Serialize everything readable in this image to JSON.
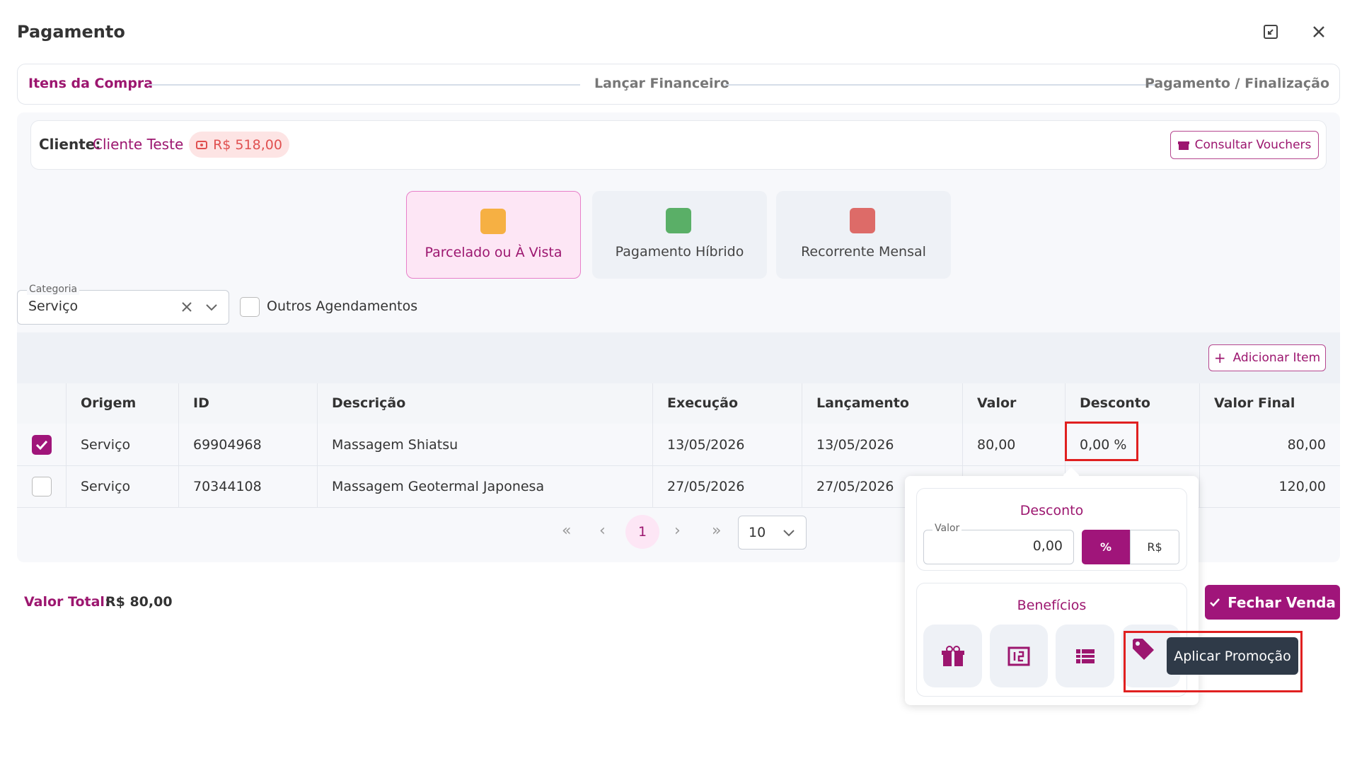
{
  "header": {
    "title": "Pagamento"
  },
  "steps": [
    "Itens da Compra",
    "Lançar Financeiro",
    "Pagamento / Finalização"
  ],
  "client": {
    "label": "Cliente:",
    "name": "Cliente Teste",
    "balance": "R$ 518,00",
    "vouchers_button": "Consultar Vouchers"
  },
  "payment_types": [
    "Parcelado ou À Vista",
    "Pagamento Híbrido",
    "Recorrente Mensal"
  ],
  "filters": {
    "category_label": "Categoria",
    "category_value": "Serviço",
    "others_label": "Outros Agendamentos"
  },
  "add_item": "Adicionar Item",
  "table": {
    "columns": [
      "Origem",
      "ID",
      "Descrição",
      "Execução",
      "Lançamento",
      "Valor",
      "Desconto",
      "Valor Final"
    ],
    "rows": [
      {
        "checked": true,
        "cells": [
          "Serviço",
          "69904968",
          "Massagem Shiatsu",
          "13/05/2026",
          "13/05/2026",
          "80,00",
          "0,00 %",
          "80,00"
        ]
      },
      {
        "checked": false,
        "cells": [
          "Serviço",
          "70344108",
          "Massagem Geotermal Japonesa",
          "27/05/2026",
          "27/05/2026",
          null,
          null,
          "120,00"
        ]
      }
    ]
  },
  "pagination": {
    "page": "1",
    "page_size": "10"
  },
  "total": {
    "label": "Valor Total:",
    "value": "R$ 80,00"
  },
  "close_sale": "Fechar Venda",
  "discount_popup": {
    "title": "Desconto",
    "input_label": "Valor",
    "input_value": "0,00",
    "percent": "%",
    "currency": "R$",
    "benefits_title": "Benefícios",
    "tooltip": "Aplicar Promoção"
  }
}
